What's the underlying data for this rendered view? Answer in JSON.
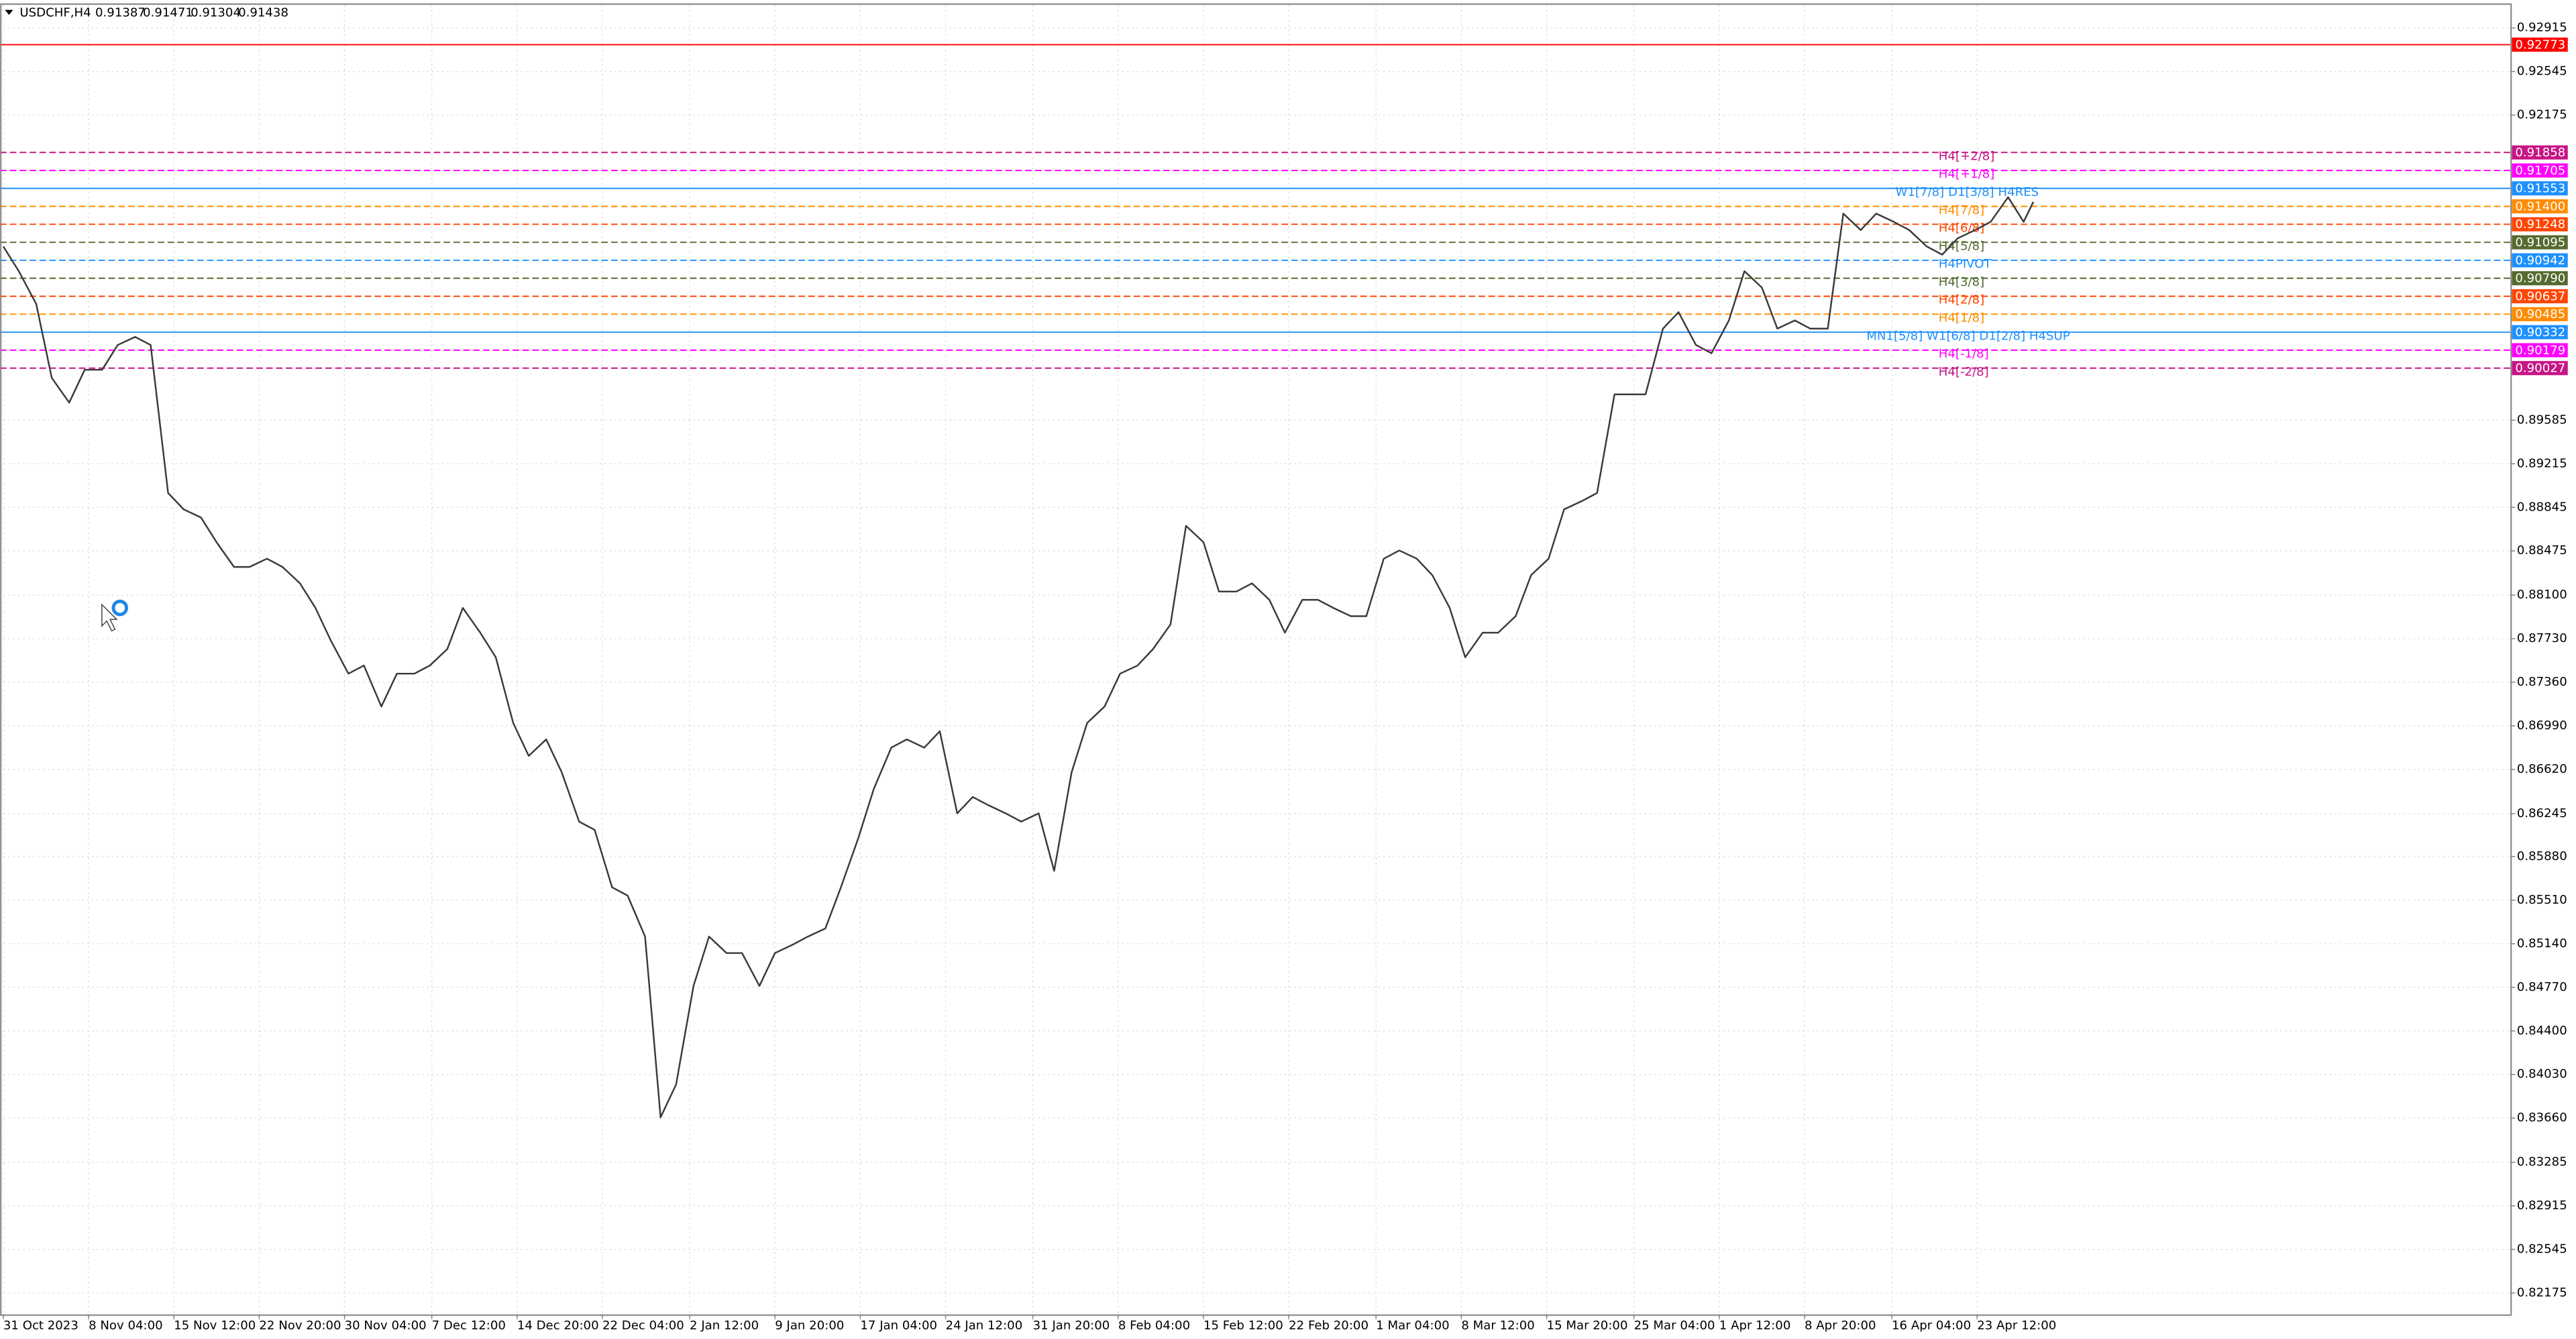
{
  "chart_data": {
    "type": "line",
    "symbol": "USDCHF,H4",
    "ohlc": [
      0.91387,
      0.91471,
      0.91304,
      0.91438
    ],
    "color": "#3a3a3a",
    "grid": true,
    "xlim": [
      0,
      1293
    ],
    "ylim": [
      0.81994,
      0.9311
    ],
    "xticks": [
      {
        "value": 0,
        "label": "31 Oct 2023"
      },
      {
        "value": 44,
        "label": "8 Nov 04:00"
      },
      {
        "value": 88,
        "label": "15 Nov 12:00"
      },
      {
        "value": 132,
        "label": "22 Nov 20:00"
      },
      {
        "value": 176,
        "label": "30 Nov 04:00"
      },
      {
        "value": 221,
        "label": "7 Dec 12:00"
      },
      {
        "value": 265,
        "label": "14 Dec 20:00"
      },
      {
        "value": 309,
        "label": "22 Dec 04:00"
      },
      {
        "value": 354,
        "label": "2 Jan 12:00"
      },
      {
        "value": 398,
        "label": "9 Jan 20:00"
      },
      {
        "value": 442,
        "label": "17 Jan 04:00"
      },
      {
        "value": 486,
        "label": "24 Jan 12:00"
      },
      {
        "value": 531,
        "label": "31 Jan 20:00"
      },
      {
        "value": 575,
        "label": "8 Feb 04:00"
      },
      {
        "value": 619,
        "label": "15 Feb 12:00"
      },
      {
        "value": 663,
        "label": "22 Feb 20:00"
      },
      {
        "value": 708,
        "label": "1 Mar 04:00"
      },
      {
        "value": 752,
        "label": "8 Mar 12:00"
      },
      {
        "value": 796,
        "label": "15 Mar 20:00"
      },
      {
        "value": 841,
        "label": "25 Mar 04:00"
      },
      {
        "value": 885,
        "label": "1 Apr 12:00"
      },
      {
        "value": 929,
        "label": "8 Apr 20:00"
      },
      {
        "value": 974,
        "label": "16 Apr 04:00"
      },
      {
        "value": 1018,
        "label": "23 Apr 12:00"
      }
    ],
    "yticks": [
      0.92915,
      0.92545,
      0.92175,
      0.89585,
      0.89215,
      0.88845,
      0.88475,
      {
        "value": 0.881,
        "label": "0.88100"
      },
      {
        "value": 0.8773,
        "label": "0.87730"
      },
      {
        "value": 0.8736,
        "label": "0.87360"
      },
      {
        "value": 0.8699,
        "label": "0.86990"
      },
      {
        "value": 0.8662,
        "label": "0.86620"
      },
      0.86245,
      {
        "value": 0.8588,
        "label": "0.85880"
      },
      {
        "value": 0.8551,
        "label": "0.85510"
      },
      {
        "value": 0.8514,
        "label": "0.85140"
      },
      {
        "value": 0.8477,
        "label": "0.84770"
      },
      {
        "value": 0.844,
        "label": "0.84400"
      },
      {
        "value": 0.8403,
        "label": "0.84030"
      },
      {
        "value": 0.8366,
        "label": "0.83660"
      },
      0.83285,
      0.82915,
      0.82545,
      0.82175
    ],
    "x": [
      0,
      8,
      17,
      25,
      34,
      42,
      51,
      59,
      68,
      76,
      85,
      93,
      102,
      110,
      119,
      127,
      136,
      144,
      153,
      161,
      169,
      178,
      186,
      195,
      203,
      212,
      220,
      229,
      237,
      246,
      254,
      263,
      271,
      280,
      288,
      297,
      305,
      314,
      322,
      331,
      339,
      347,
      356,
      364,
      373,
      381,
      390,
      398,
      407,
      415,
      424,
      432,
      441,
      449,
      458,
      466,
      475,
      483,
      492,
      500,
      508,
      517,
      525,
      534,
      542,
      551,
      559,
      568,
      576,
      585,
      593,
      602,
      610,
      619,
      627,
      636,
      644,
      653,
      661,
      670,
      678,
      686,
      695,
      703,
      712,
      720,
      729,
      737,
      746,
      754,
      763,
      771,
      780,
      788,
      797,
      805,
      814,
      822,
      831,
      839,
      847,
      856,
      864,
      873,
      881,
      890,
      898,
      907,
      915,
      924,
      932,
      941,
      949,
      958,
      966,
      975,
      983,
      992,
      1000,
      1008,
      1017,
      1025,
      1034,
      1042,
      1047
    ],
    "values": [
      0.9106,
      0.9085,
      0.90571,
      0.89944,
      0.89734,
      0.90013,
      0.90013,
      0.90223,
      0.90292,
      0.90223,
      0.88967,
      0.88828,
      0.88758,
      0.88549,
      0.88339,
      0.88339,
      0.88409,
      0.88339,
      0.882,
      0.87991,
      0.87712,
      0.87433,
      0.87502,
      0.87154,
      0.87433,
      0.87433,
      0.87502,
      0.87642,
      0.87991,
      0.87781,
      0.87572,
      0.87014,
      0.86735,
      0.86875,
      0.86596,
      0.86177,
      0.86107,
      0.85619,
      0.85549,
      0.85201,
      0.83666,
      0.83945,
      0.84782,
      0.85201,
      0.85061,
      0.85061,
      0.84782,
      0.85061,
      0.85131,
      0.85201,
      0.8527,
      0.85619,
      0.86038,
      0.86456,
      0.86805,
      0.86875,
      0.86805,
      0.86944,
      0.86247,
      0.86386,
      0.86317,
      0.86247,
      0.86177,
      0.86247,
      0.85759,
      0.86596,
      0.87014,
      0.87154,
      0.87433,
      0.87502,
      0.87642,
      0.87851,
      0.88688,
      0.88549,
      0.8813,
      0.8813,
      0.882,
      0.8806,
      0.87781,
      0.8806,
      0.8806,
      0.87991,
      0.87921,
      0.87921,
      0.88409,
      0.88479,
      0.88409,
      0.8827,
      0.87991,
      0.87572,
      0.87781,
      0.87781,
      0.87921,
      0.8827,
      0.88409,
      0.88828,
      0.88897,
      0.88967,
      0.89804,
      0.89804,
      0.89804,
      0.90362,
      0.90502,
      0.90223,
      0.90153,
      0.90432,
      0.9085,
      0.90711,
      0.90362,
      0.90432,
      0.90362,
      0.90362,
      0.91339,
      0.91199,
      0.91339,
      0.91269,
      0.91199,
      0.9106,
      0.9099,
      0.91129,
      0.91199,
      0.91269,
      0.91478,
      0.91269,
      0.91438
    ],
    "levels": [
      {
        "value": 0.92773,
        "value_label": "0.92773",
        "color": "#ff0000",
        "dashed": false
      },
      {
        "value": 0.91858,
        "value_label": "0.91858",
        "name": "H4[+2/8]",
        "color": "#c71585",
        "dashed": true
      },
      {
        "value": 0.91705,
        "value_label": "0.91705",
        "name": "H4[+1/8]",
        "color": "#ff00ff",
        "dashed": true
      },
      {
        "value": 0.91553,
        "value_label": "0.91553",
        "name": "W1[7/8] D1[3/8] H4RES",
        "color": "#1e90ff",
        "dashed": false
      },
      {
        "value": 0.914,
        "value_label": "0.91400",
        "name": "H4[7/8]",
        "color": "#ff8c00",
        "dashed": true
      },
      {
        "value": 0.91248,
        "value_label": "0.91248",
        "name": "H4[6/8]",
        "color": "#ff4500",
        "dashed": true
      },
      {
        "value": 0.91095,
        "value_label": "0.91095",
        "name": "H4[5/8]",
        "color": "#556b2f",
        "dashed": true
      },
      {
        "value": 0.90942,
        "value_label": "0.90942",
        "name": "H4PIVOT",
        "color": "#1e90ff",
        "dashed": true
      },
      {
        "value": 0.9079,
        "value_label": "0.90790",
        "name": "H4[3/8]",
        "color": "#556b2f",
        "dashed": true
      },
      {
        "value": 0.90637,
        "value_label": "0.90637",
        "name": "H4[2/8]",
        "color": "#ff4500",
        "dashed": true
      },
      {
        "value": 0.90485,
        "value_label": "0.90485",
        "name": "H4[1/8]",
        "color": "#ff8c00",
        "dashed": true
      },
      {
        "value": 0.90332,
        "value_label": "0.90332",
        "name": "MN1[5/8] W1[6/8] D1[2/8] H4SUP",
        "color": "#1e90ff",
        "dashed": false
      },
      {
        "value": 0.90179,
        "value_label": "0.90179",
        "name": "H4[-1/8]",
        "color": "#ff00ff",
        "dashed": true
      },
      {
        "value": 0.90027,
        "value_label": "0.90027",
        "name": "H4[-2/8]",
        "color": "#c71585",
        "dashed": true
      }
    ]
  }
}
